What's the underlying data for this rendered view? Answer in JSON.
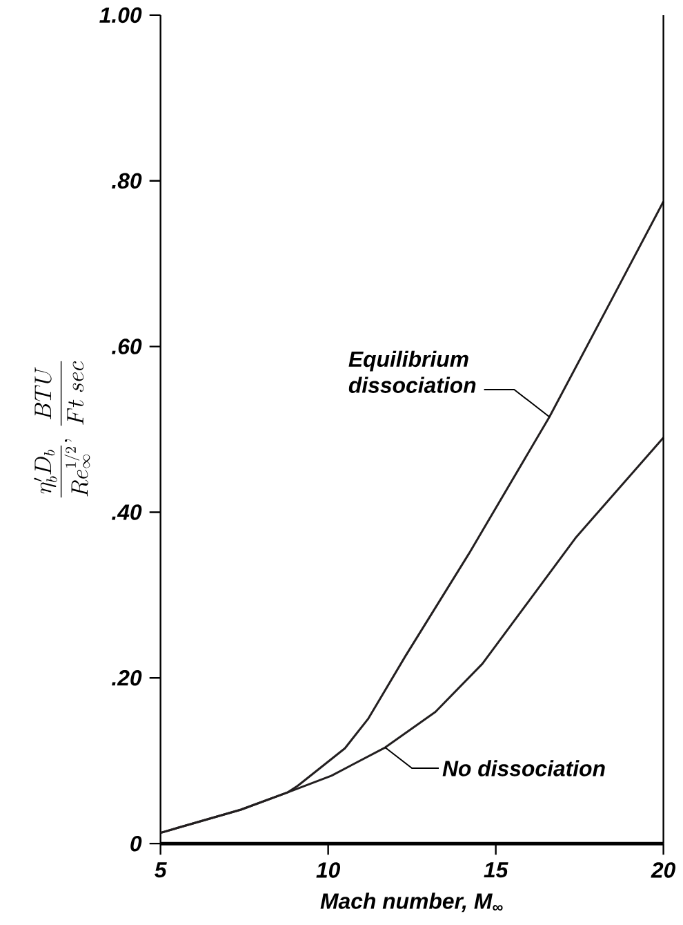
{
  "chart_data": {
    "type": "line",
    "xlabel": "Mach number, M$_{∞}$",
    "ylabel": "\\frac{\\eta'_b D_b}{Re_\\infty^{1/2}},\\ \\frac{BTU}{Ft\\ sec}",
    "xlim": [
      5,
      20
    ],
    "ylim": [
      0,
      1.0
    ],
    "xticks": [
      5,
      10,
      15,
      20
    ],
    "yticks": [
      0,
      {
        "value": 0.2,
        "label": ".20"
      },
      {
        "value": 0.4,
        "label": ".40"
      },
      {
        "value": 0.6,
        "label": ".60"
      },
      {
        "value": 0.8,
        "label": ".80"
      },
      {
        "value": 1.0,
        "label": "1.00"
      }
    ],
    "series": [
      {
        "color": "#231f20",
        "x": [
          5,
          7.4,
          8.8,
          9.1,
          10.5,
          11.2,
          12.3,
          14.2,
          16.6,
          18.5,
          20
        ],
        "values": [
          0.013,
          0.041,
          0.062,
          0.07,
          0.115,
          0.151,
          0.226,
          0.35,
          0.515,
          0.66,
          0.775
        ]
      },
      {
        "color": "#231f20",
        "x": [
          5,
          7.4,
          8.8,
          10.1,
          11.7,
          13.2,
          14.6,
          17.4,
          20
        ],
        "values": [
          0.013,
          0.041,
          0.062,
          0.082,
          0.116,
          0.159,
          0.217,
          0.37,
          0.49
        ]
      }
    ],
    "annotations": [
      {
        "text": "Equilibrium dissociation",
        "x": 16.6,
        "y": 0.515
      },
      {
        "text": "No dissociation",
        "x": 11.7,
        "y": 0.116
      }
    ],
    "grid": false,
    "marker": "none",
    "line_style": "solid"
  }
}
